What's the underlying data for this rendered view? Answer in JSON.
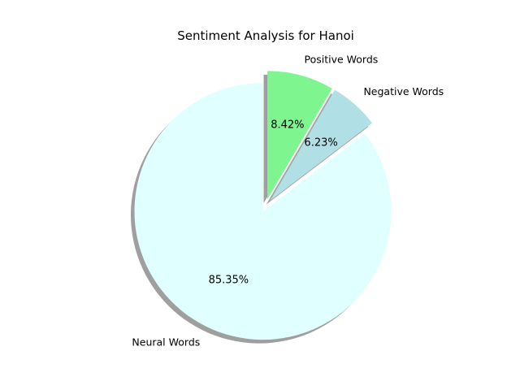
{
  "chart_data": {
    "type": "pie",
    "title": "Sentiment Analysis for Hanoi",
    "slices": [
      {
        "label": "Positive Words",
        "value": 8.42,
        "pct_label": "8.42%",
        "color": "#7ef58f",
        "exploded": true
      },
      {
        "label": "Negative Words",
        "value": 6.23,
        "pct_label": "6.23%",
        "color": "#b0e0e6",
        "exploded": true
      },
      {
        "label": "Neural Words",
        "value": 85.35,
        "pct_label": "85.35%",
        "color": "#e0ffff",
        "exploded": true
      }
    ],
    "start_angle_deg": 90,
    "direction": "clockwise",
    "shadow": true,
    "legend": "none"
  }
}
